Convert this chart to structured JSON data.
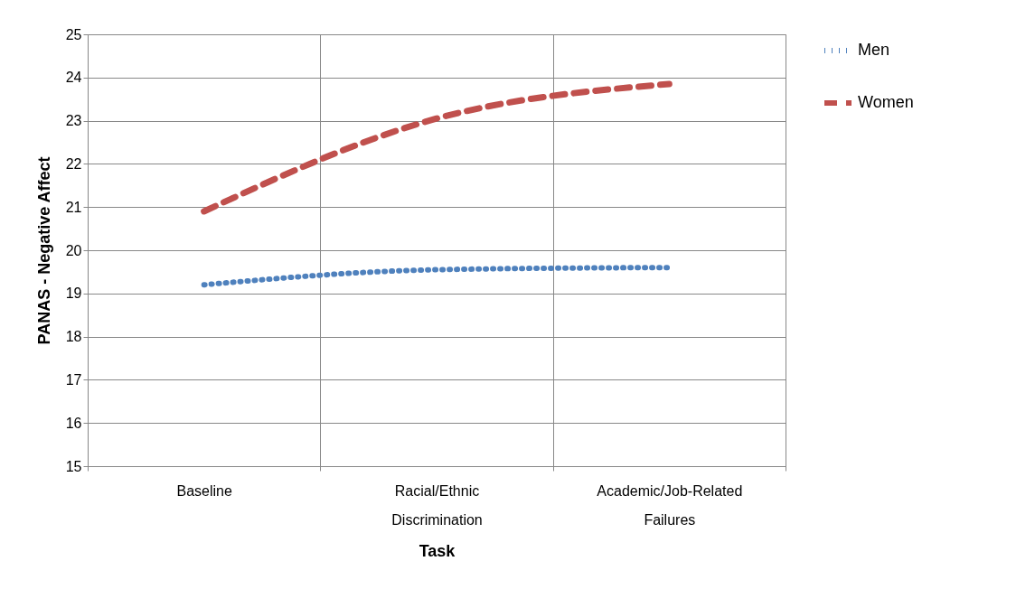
{
  "chart_data": {
    "type": "line",
    "xlabel": "Task",
    "ylabel": "PANAS - Negative Affect",
    "categories": [
      "Baseline",
      "Racial/Ethnic Discrimination",
      "Academic/Job-Related Failures"
    ],
    "series": [
      {
        "name": "Men",
        "color": "#4f81bd",
        "values": [
          19.2,
          19.55,
          19.6
        ],
        "line_style": "dotted"
      },
      {
        "name": "Women",
        "color": "#c0504d",
        "values": [
          20.9,
          23.05,
          23.85
        ],
        "line_style": "dashed"
      }
    ],
    "ylim": [
      15,
      25
    ],
    "yticks": [
      15,
      16,
      17,
      18,
      19,
      20,
      21,
      22,
      23,
      24,
      25
    ],
    "grid": true,
    "legend": "right"
  }
}
